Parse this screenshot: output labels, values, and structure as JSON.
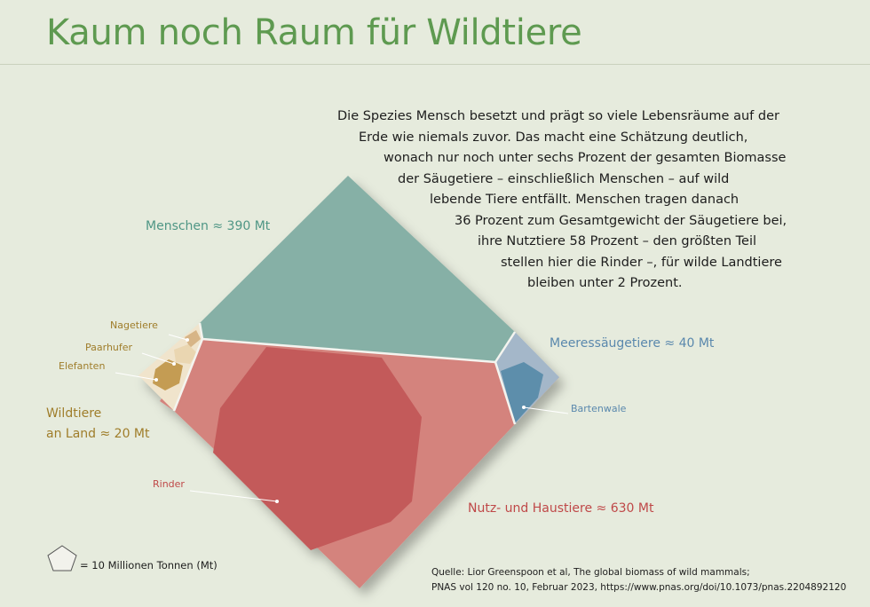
{
  "title": "Kaum noch Raum für Wildtiere",
  "intro_lines": [
    "Die Spezies Mensch besetzt und prägt so viele Lebensräume auf der",
    "Erde wie niemals zuvor. Das macht eine Schätzung deutlich,",
    "wonach nur noch unter sechs Prozent der gesamten Biomasse",
    "der Säugetiere – einschließlich Menschen – auf wild",
    "lebende Tiere entfällt. Menschen tragen danach",
    "36 Prozent zum Gesamtgewicht der Säugetiere bei,",
    "ihre Nutztiere 58 Prozent – den größten Teil",
    "stellen hier die Rinder –, für wilde Landtiere",
    "bleiben unter 2 Prozent."
  ],
  "chart_data": {
    "type": "voronoi-treemap",
    "unit": "Mt",
    "groups": [
      {
        "name": "Menschen",
        "label": "Menschen ≈ 390 Mt",
        "value": 390,
        "color": "#86b0a6"
      },
      {
        "name": "Nutz- und Haustiere",
        "label": "Nutz- und Haustiere ≈ 630 Mt",
        "value": 630,
        "color": "#d4837d",
        "highlight": {
          "name": "Rinder",
          "color": "#c35a5a"
        }
      },
      {
        "name": "Meeressäugetiere",
        "label": "Meeressäugetiere ≈ 40 Mt",
        "value": 40,
        "color": "#a4b7c9",
        "highlight": {
          "name": "Bartenwale",
          "color": "#5d8eab"
        }
      },
      {
        "name": "Wildtiere an Land",
        "label_lines": [
          "Wildtiere",
          "an Land ≈ 20 Mt"
        ],
        "value": 20,
        "color": "#f0e4cc",
        "sub": [
          {
            "name": "Nagetiere",
            "color": "#d7b587"
          },
          {
            "name": "Paarhufer",
            "color": "#ead6b1"
          },
          {
            "name": "Elefanten",
            "color": "#c49c52"
          }
        ]
      }
    ],
    "label_colors": {
      "humans": "#4f9685",
      "livestock": "#bf4848",
      "marine": "#5a88ad",
      "wild": "#9f7d2a"
    },
    "legend": {
      "text": "= 10 Millionen Tonnen (Mt)",
      "value": 10,
      "unit": "Mt"
    }
  },
  "source_lines": [
    "Quelle: Lior Greenspoon et al, The global biomass of wild mammals;",
    "PNAS vol 120 no. 10, Februar 2023, https://www.pnas.org/doi/10.1073/pnas.2204892120"
  ]
}
